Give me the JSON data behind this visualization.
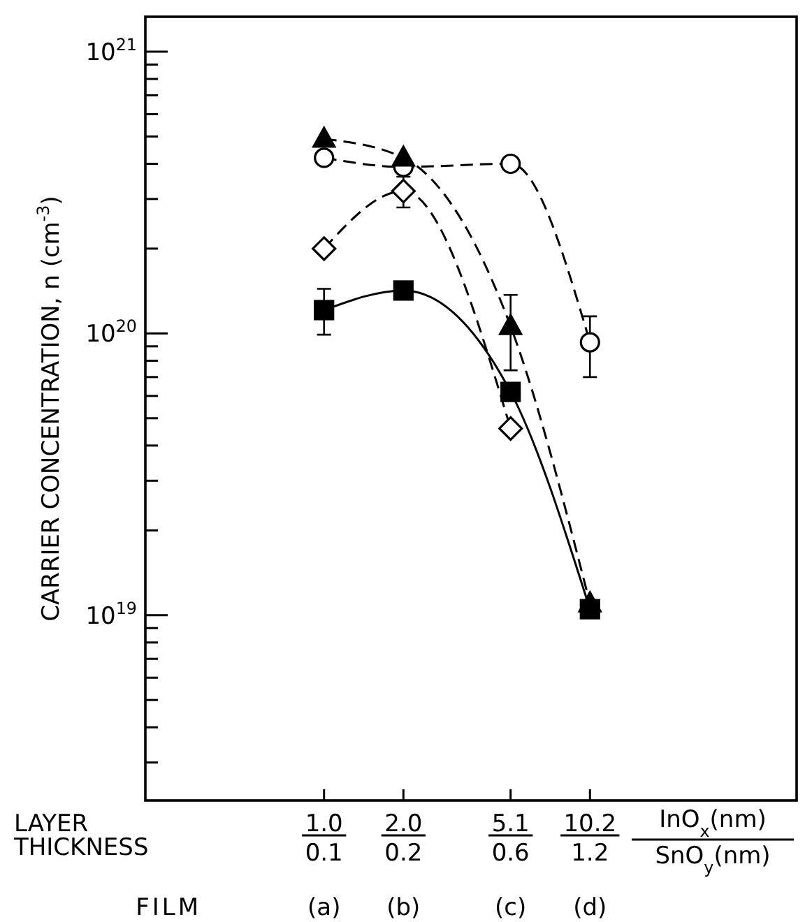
{
  "chart_data": {
    "type": "line",
    "ylabel": "CARRIER CONCENTRATION, n (cm$^{-3}$)",
    "xlabel": "LAYER THICKNESS",
    "x": [
      1.0,
      2.0,
      5.1,
      10.2
    ],
    "log": "xy",
    "xlim": [
      0.21,
      62
    ],
    "xticks": [
      {
        "value": 1.0,
        "label": "1.0"
      },
      {
        "value": 2.0,
        "label": "2.0"
      },
      {
        "value": 5.1,
        "label": "5.1"
      },
      {
        "value": 10.2,
        "label": "10.2"
      }
    ],
    "ylim": [
      2.2e+18,
      1.33e+21
    ],
    "yticks": [
      {
        "value": 3e+18,
        "label": null
      },
      {
        "value": 4e+18,
        "label": null
      },
      {
        "value": 5e+18,
        "label": null
      },
      {
        "value": 6e+18,
        "label": null
      },
      {
        "value": 7e+18,
        "label": null
      },
      {
        "value": 8e+18,
        "label": null
      },
      {
        "value": 9e+18,
        "label": null
      },
      {
        "value": 1e+19,
        "label": "10$^{19}$"
      },
      {
        "value": 2e+19,
        "label": null
      },
      {
        "value": 3e+19,
        "label": null
      },
      {
        "value": 4e+19,
        "label": null
      },
      {
        "value": 5e+19,
        "label": null
      },
      {
        "value": 6e+19,
        "label": null
      },
      {
        "value": 7e+19,
        "label": null
      },
      {
        "value": 8e+19,
        "label": null
      },
      {
        "value": 9e+19,
        "label": null
      },
      {
        "value": 1e+20,
        "label": "10$^{20}$"
      },
      {
        "value": 2e+20,
        "label": null
      },
      {
        "value": 3e+20,
        "label": null
      },
      {
        "value": 4e+20,
        "label": null
      },
      {
        "value": 5e+20,
        "label": null
      },
      {
        "value": 6e+20,
        "label": null
      },
      {
        "value": 7e+20,
        "label": null
      },
      {
        "value": 8e+20,
        "label": null
      },
      {
        "value": 9e+20,
        "label": null
      },
      {
        "value": 1e+21,
        "label": "10$^{21}$"
      }
    ],
    "series": [
      {
        "color": "#000000",
        "marker": "triangle",
        "line_style": "dashed",
        "values": [
          4.9e+20,
          4.2e+20,
          1.06e+20,
          1.1e+19
        ],
        "errors": [
          null,
          null,
          [
            7.4e+19,
            1.37e+20
          ],
          null
        ]
      },
      {
        "color": "#000000",
        "marker": "circle",
        "line_style": "dashed",
        "values": [
          4.2e+20,
          3.9e+20,
          4e+20,
          9.3e+19
        ],
        "errors": [
          null,
          null,
          null,
          [
            7e+19,
            1.15e+20
          ]
        ]
      },
      {
        "color": "#000000",
        "marker": "diamond",
        "line_style": "dashed",
        "values": [
          2e+20,
          3.2e+20,
          4.6e+19,
          null
        ],
        "errors": [
          null,
          [
            2.8e+20,
            3.6e+20
          ],
          null,
          null
        ]
      },
      {
        "color": "#000000",
        "marker": "square",
        "line_style": "solid",
        "values": [
          1.21e+20,
          1.42e+20,
          6.2e+19,
          1.05e+19
        ],
        "errors": [
          [
            9.9e+19,
            1.44e+20
          ],
          null,
          null,
          null
        ]
      }
    ],
    "annotations": [
      "InO$_{x}$(nm)",
      "SnO$_{y}$(nm)",
      "FILM",
      "0.1",
      "0.2",
      "0.6",
      "1.2",
      "(a)",
      "(b)",
      "(c)",
      "(d)"
    ],
    "grid": false
  }
}
